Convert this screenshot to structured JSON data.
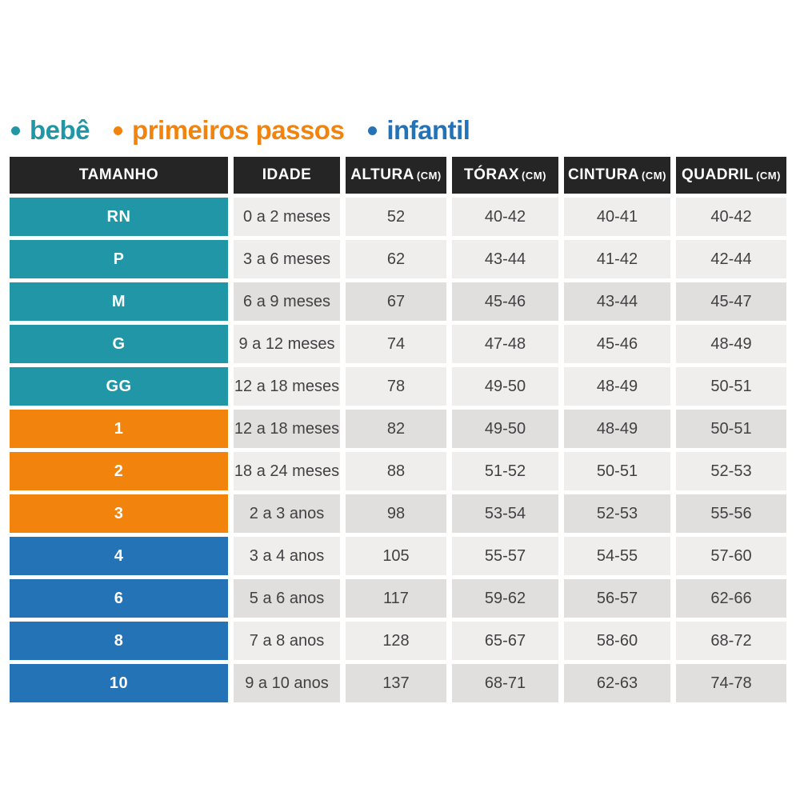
{
  "legend": {
    "items": [
      {
        "label": "bebê",
        "color": "#2196a6"
      },
      {
        "label": "primeiros passos",
        "color": "#f2830d"
      },
      {
        "label": "infantil",
        "color": "#2573b7"
      }
    ]
  },
  "table": {
    "header": {
      "bg": "#242524",
      "text_color": "#ffffff",
      "columns": [
        {
          "label": "TAMANHO",
          "unit": ""
        },
        {
          "label": "IDADE",
          "unit": ""
        },
        {
          "label": "ALTURA",
          "unit": "(CM)"
        },
        {
          "label": "TÓRAX",
          "unit": "(CM)"
        },
        {
          "label": "CINTURA",
          "unit": "(CM)"
        },
        {
          "label": "QUADRIL",
          "unit": "(CM)"
        }
      ]
    },
    "row_colors": {
      "light": "#efeeec",
      "dark": "#e0dfdd"
    },
    "group_colors": {
      "bebe": "#2196a6",
      "primeiros_passos": "#f2830d",
      "infantil": "#2573b7"
    },
    "rows": [
      {
        "size": "RN",
        "group": "bebe",
        "shade": "light",
        "idade": "0 a 2 meses",
        "altura": "52",
        "torax": "40-42",
        "cintura": "40-41",
        "quadril": "40-42"
      },
      {
        "size": "P",
        "group": "bebe",
        "shade": "light",
        "idade": "3 a 6 meses",
        "altura": "62",
        "torax": "43-44",
        "cintura": "41-42",
        "quadril": "42-44"
      },
      {
        "size": "M",
        "group": "bebe",
        "shade": "dark",
        "idade": "6 a 9 meses",
        "altura": "67",
        "torax": "45-46",
        "cintura": "43-44",
        "quadril": "45-47"
      },
      {
        "size": "G",
        "group": "bebe",
        "shade": "light",
        "idade": "9 a 12 meses",
        "altura": "74",
        "torax": "47-48",
        "cintura": "45-46",
        "quadril": "48-49"
      },
      {
        "size": "GG",
        "group": "bebe",
        "shade": "light",
        "idade": "12 a 18 meses",
        "altura": "78",
        "torax": "49-50",
        "cintura": "48-49",
        "quadril": "50-51"
      },
      {
        "size": "1",
        "group": "primeiros_passos",
        "shade": "dark",
        "idade": "12 a 18 meses",
        "altura": "82",
        "torax": "49-50",
        "cintura": "48-49",
        "quadril": "50-51"
      },
      {
        "size": "2",
        "group": "primeiros_passos",
        "shade": "light",
        "idade": "18 a 24 meses",
        "altura": "88",
        "torax": "51-52",
        "cintura": "50-51",
        "quadril": "52-53"
      },
      {
        "size": "3",
        "group": "primeiros_passos",
        "shade": "dark",
        "idade": "2 a 3 anos",
        "altura": "98",
        "torax": "53-54",
        "cintura": "52-53",
        "quadril": "55-56"
      },
      {
        "size": "4",
        "group": "infantil",
        "shade": "light",
        "idade": "3 a 4 anos",
        "altura": "105",
        "torax": "55-57",
        "cintura": "54-55",
        "quadril": "57-60"
      },
      {
        "size": "6",
        "group": "infantil",
        "shade": "dark",
        "idade": "5 a 6 anos",
        "altura": "117",
        "torax": "59-62",
        "cintura": "56-57",
        "quadril": "62-66"
      },
      {
        "size": "8",
        "group": "infantil",
        "shade": "light",
        "idade": "7 a 8 anos",
        "altura": "128",
        "torax": "65-67",
        "cintura": "58-60",
        "quadril": "68-72"
      },
      {
        "size": "10",
        "group": "infantil",
        "shade": "dark",
        "idade": "9 a 10 anos",
        "altura": "137",
        "torax": "68-71",
        "cintura": "62-63",
        "quadril": "74-78"
      }
    ]
  },
  "chart_data": {
    "type": "table",
    "legend": [
      "bebê",
      "primeiros passos",
      "infantil"
    ],
    "columns": [
      "TAMANHO",
      "IDADE",
      "ALTURA (CM)",
      "TÓRAX (CM)",
      "CINTURA (CM)",
      "QUADRIL (CM)"
    ],
    "rows": [
      [
        "RN",
        "0 a 2 meses",
        "52",
        "40-42",
        "40-41",
        "40-42"
      ],
      [
        "P",
        "3 a 6 meses",
        "62",
        "43-44",
        "41-42",
        "42-44"
      ],
      [
        "M",
        "6 a 9 meses",
        "67",
        "45-46",
        "43-44",
        "45-47"
      ],
      [
        "G",
        "9 a 12 meses",
        "74",
        "47-48",
        "45-46",
        "48-49"
      ],
      [
        "GG",
        "12 a 18 meses",
        "78",
        "49-50",
        "48-49",
        "50-51"
      ],
      [
        "1",
        "12 a 18 meses",
        "82",
        "49-50",
        "48-49",
        "50-51"
      ],
      [
        "2",
        "18 a 24 meses",
        "88",
        "51-52",
        "50-51",
        "52-53"
      ],
      [
        "3",
        "2 a 3 anos",
        "98",
        "53-54",
        "52-53",
        "55-56"
      ],
      [
        "4",
        "3 a 4 anos",
        "105",
        "55-57",
        "54-55",
        "57-60"
      ],
      [
        "6",
        "5 a 6 anos",
        "117",
        "59-62",
        "56-57",
        "62-66"
      ],
      [
        "8",
        "7 a 8 anos",
        "128",
        "65-67",
        "58-60",
        "68-72"
      ],
      [
        "10",
        "9 a 10 anos",
        "137",
        "68-71",
        "62-63",
        "74-78"
      ]
    ]
  }
}
